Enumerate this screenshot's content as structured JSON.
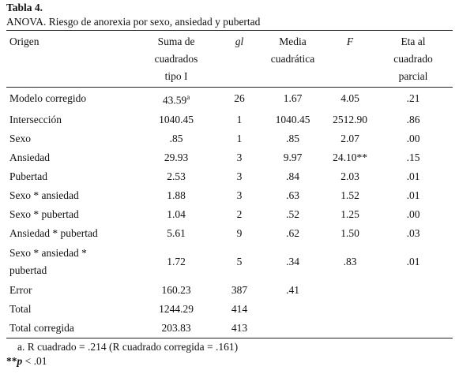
{
  "header": {
    "label": "Tabla 4.",
    "title": "ANOVA. Riesgo de anorexia por sexo, ansiedad y pubertad"
  },
  "table": {
    "columns": [
      {
        "lines": [
          "Origen"
        ],
        "italic": false
      },
      {
        "lines": [
          "Suma de",
          "cuadrados",
          "tipo I"
        ],
        "italic": false
      },
      {
        "lines": [
          "gl"
        ],
        "italic": true
      },
      {
        "lines": [
          "Media",
          "cuadrática"
        ],
        "italic": false
      },
      {
        "lines": [
          "F"
        ],
        "italic": true
      },
      {
        "lines": [
          "Eta al",
          "cuadrado",
          "parcial"
        ],
        "italic": false
      }
    ],
    "rows": [
      [
        [
          "Modelo corregido"
        ],
        {
          "text": "43.59",
          "sup": "a"
        },
        "26",
        "1.67",
        "4.05",
        ".21"
      ],
      [
        [
          "Intersección"
        ],
        "1040.45",
        "1",
        "1040.45",
        "2512.90",
        ".86"
      ],
      [
        [
          "Sexo"
        ],
        ".85",
        "1",
        ".85",
        "2.07",
        ".00"
      ],
      [
        [
          "Ansiedad"
        ],
        "29.93",
        "3",
        "9.97",
        "24.10**",
        ".15"
      ],
      [
        [
          "Pubertad"
        ],
        "2.53",
        "3",
        ".84",
        "2.03",
        ".01"
      ],
      [
        [
          "Sexo * ansiedad"
        ],
        "1.88",
        "3",
        ".63",
        "1.52",
        ".01"
      ],
      [
        [
          "Sexo * pubertad"
        ],
        "1.04",
        "2",
        ".52",
        "1.25",
        ".00"
      ],
      [
        [
          "Ansiedad * pubertad"
        ],
        "5.61",
        "9",
        ".62",
        "1.50",
        ".03"
      ],
      [
        [
          "Sexo * ansiedad *",
          "pubertad"
        ],
        "1.72",
        "5",
        ".34",
        ".83",
        ".01"
      ],
      [
        [
          "Error"
        ],
        "160.23",
        "387",
        ".41"
      ],
      [
        [
          "Total"
        ],
        "1244.29",
        "414"
      ],
      [
        [
          "Total corregida"
        ],
        "203.83",
        "413"
      ]
    ]
  },
  "notes": {
    "a": "a.  R cuadrado = .214 (R cuadrado corregida = .161)",
    "p": {
      "mark": "**",
      "var": "p",
      "text": " < .01"
    }
  }
}
